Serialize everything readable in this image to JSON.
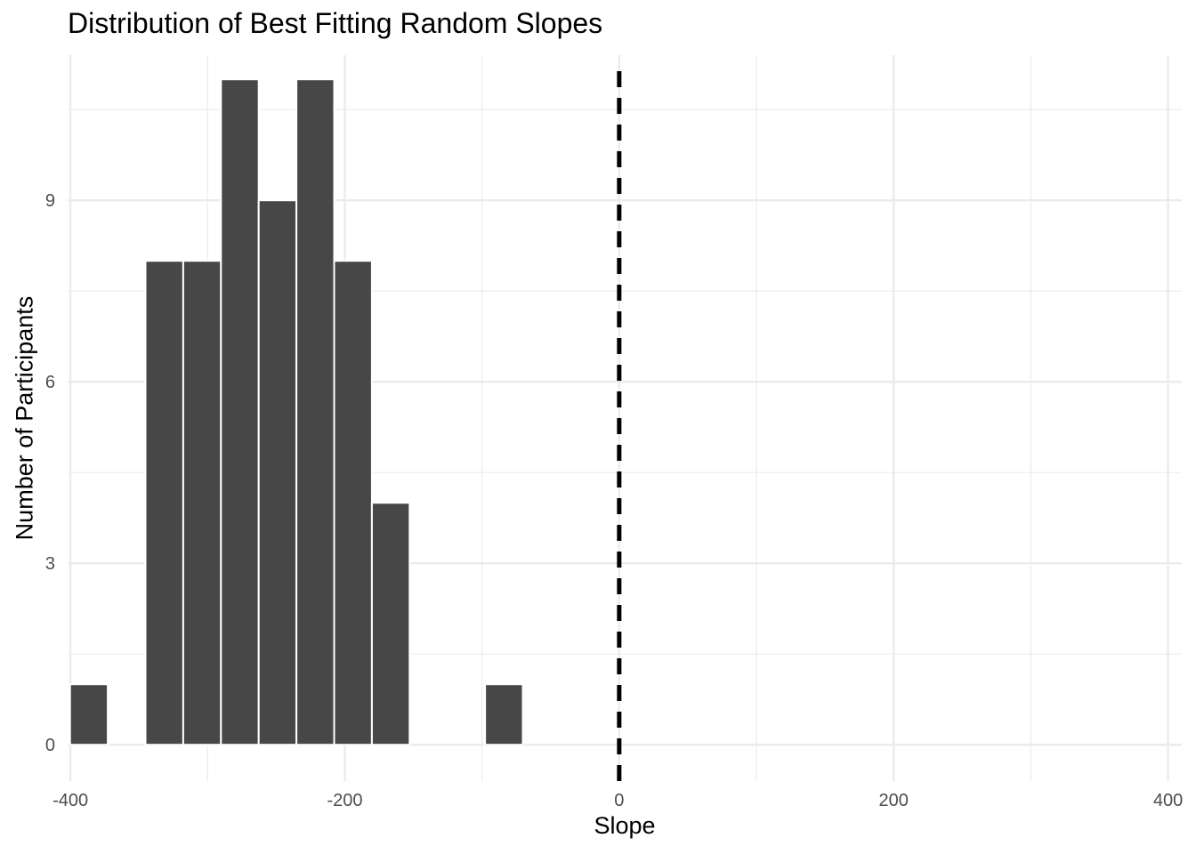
{
  "chart_data": {
    "type": "bar",
    "title": "Distribution of Best Fitting Random Slopes",
    "xlabel": "Slope",
    "ylabel": "Number of Participants",
    "xlim": [
      -402,
      410
    ],
    "ylim": [
      -0.6,
      11.4
    ],
    "x_ticks": [
      -400,
      -200,
      0,
      200,
      400
    ],
    "x_tick_labels": [
      "-400",
      "-200",
      "0",
      "200",
      "400"
    ],
    "y_ticks": [
      0,
      3,
      6,
      9
    ],
    "y_tick_labels": [
      "0",
      "3",
      "6",
      "9"
    ],
    "bin_width": 27.5,
    "bins": [
      {
        "center": -386.5,
        "count": 1
      },
      {
        "center": -359.0,
        "count": 0
      },
      {
        "center": -331.5,
        "count": 8
      },
      {
        "center": -304.0,
        "count": 8
      },
      {
        "center": -276.5,
        "count": 11
      },
      {
        "center": -249.0,
        "count": 9
      },
      {
        "center": -221.5,
        "count": 11
      },
      {
        "center": -194.0,
        "count": 8
      },
      {
        "center": -166.5,
        "count": 4
      },
      {
        "center": -139.0,
        "count": 0
      },
      {
        "center": -111.5,
        "count": 0
      },
      {
        "center": -84.0,
        "count": 1
      }
    ],
    "reference_line": {
      "x": 0,
      "style": "dashed",
      "color": "#000000"
    },
    "bar_color": "#474747",
    "bar_outline_color": "#ffffff",
    "grid": true,
    "grid_color": "#ebebeb",
    "legend": "none"
  }
}
